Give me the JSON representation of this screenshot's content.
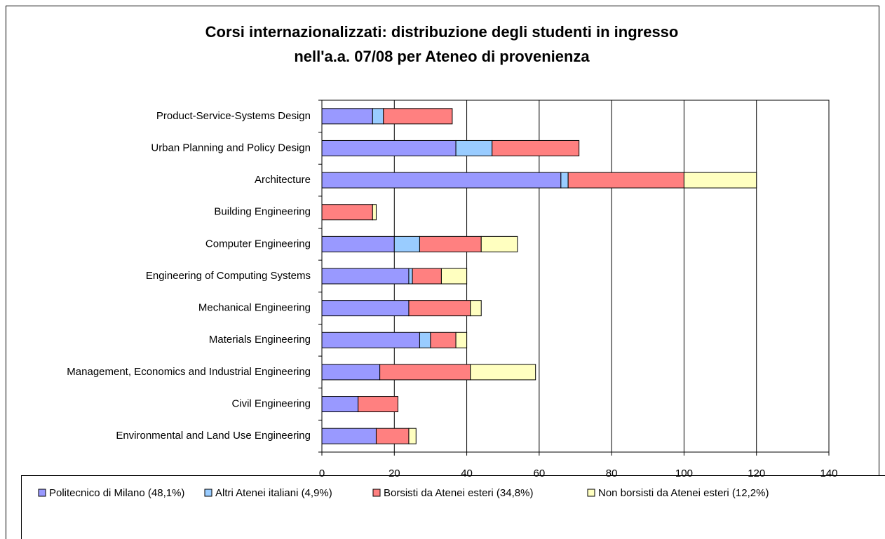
{
  "chart_data": {
    "type": "stacked-bar-horizontal",
    "title": [
      "Corsi internazionalizzati: distribuzione degli studenti in ingresso",
      "nell'a.a. 07/08 per Ateneo di provenienza"
    ],
    "categories": [
      "Product-Service-Systems Design",
      "Urban Planning and Policy Design",
      "Architecture",
      "Building Engineering",
      "Computer Engineering",
      "Engineering of Computing Systems",
      "Mechanical Engineering",
      "Materials Engineering",
      "Management, Economics and Industrial Engineering",
      "Civil Engineering",
      "Environmental and Land Use Engineering"
    ],
    "series": [
      {
        "name": "Politecnico di Milano (48,1%)",
        "color": "#9999ff",
        "values": [
          14,
          37,
          66,
          0,
          20,
          24,
          24,
          27,
          16,
          10,
          15
        ]
      },
      {
        "name": "Altri Atenei italiani (4,9%)",
        "color": "#99ccff",
        "values": [
          3,
          10,
          2,
          0,
          7,
          1,
          0,
          3,
          0,
          0,
          0
        ]
      },
      {
        "name": "Borsisti da Atenei esteri (34,8%)",
        "color": "#ff8080",
        "values": [
          19,
          24,
          32,
          14,
          17,
          8,
          17,
          7,
          25,
          11,
          9
        ]
      },
      {
        "name": "Non borsisti da Atenei esteri (12,2%)",
        "color": "#ffffc0",
        "values": [
          0,
          0,
          20,
          1,
          10,
          7,
          3,
          3,
          18,
          0,
          2
        ]
      }
    ],
    "xlim": [
      0,
      140
    ],
    "xticks": [
      0,
      20,
      40,
      60,
      80,
      100,
      120,
      140
    ],
    "grid": true,
    "legend": "bottom"
  }
}
